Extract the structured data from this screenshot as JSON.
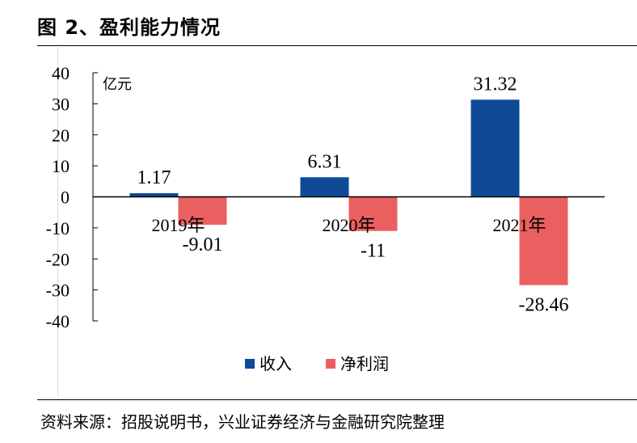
{
  "figure": {
    "title": "图 2、盈利能力情况",
    "source": "资料来源：招股说明书，兴业证券经济与金融研究院整理"
  },
  "colors": {
    "revenue": "#0e4a96",
    "profit": "#ec5f60"
  },
  "chart_data": {
    "type": "bar",
    "title": "图 2、盈利能力情况",
    "unit": "亿元",
    "categories": [
      "2019年",
      "2020年",
      "2021年"
    ],
    "series": [
      {
        "name": "收入",
        "values": [
          1.17,
          6.31,
          31.32
        ],
        "labels": [
          "1.17",
          "6.31",
          "31.32"
        ]
      },
      {
        "name": "净利润",
        "values": [
          -9.01,
          -11,
          -28.46
        ],
        "labels": [
          "-9.01",
          "-11",
          "-28.46"
        ]
      }
    ],
    "ylim": [
      -40,
      40
    ],
    "yticks": [
      40,
      30,
      20,
      10,
      0,
      -10,
      -20,
      -30,
      -40
    ],
    "ytick_labels": [
      "40",
      "30",
      "20",
      "10",
      "0",
      "-10",
      "-20",
      "-30",
      "-40"
    ],
    "legend_position": "bottom-center",
    "grid": false
  }
}
